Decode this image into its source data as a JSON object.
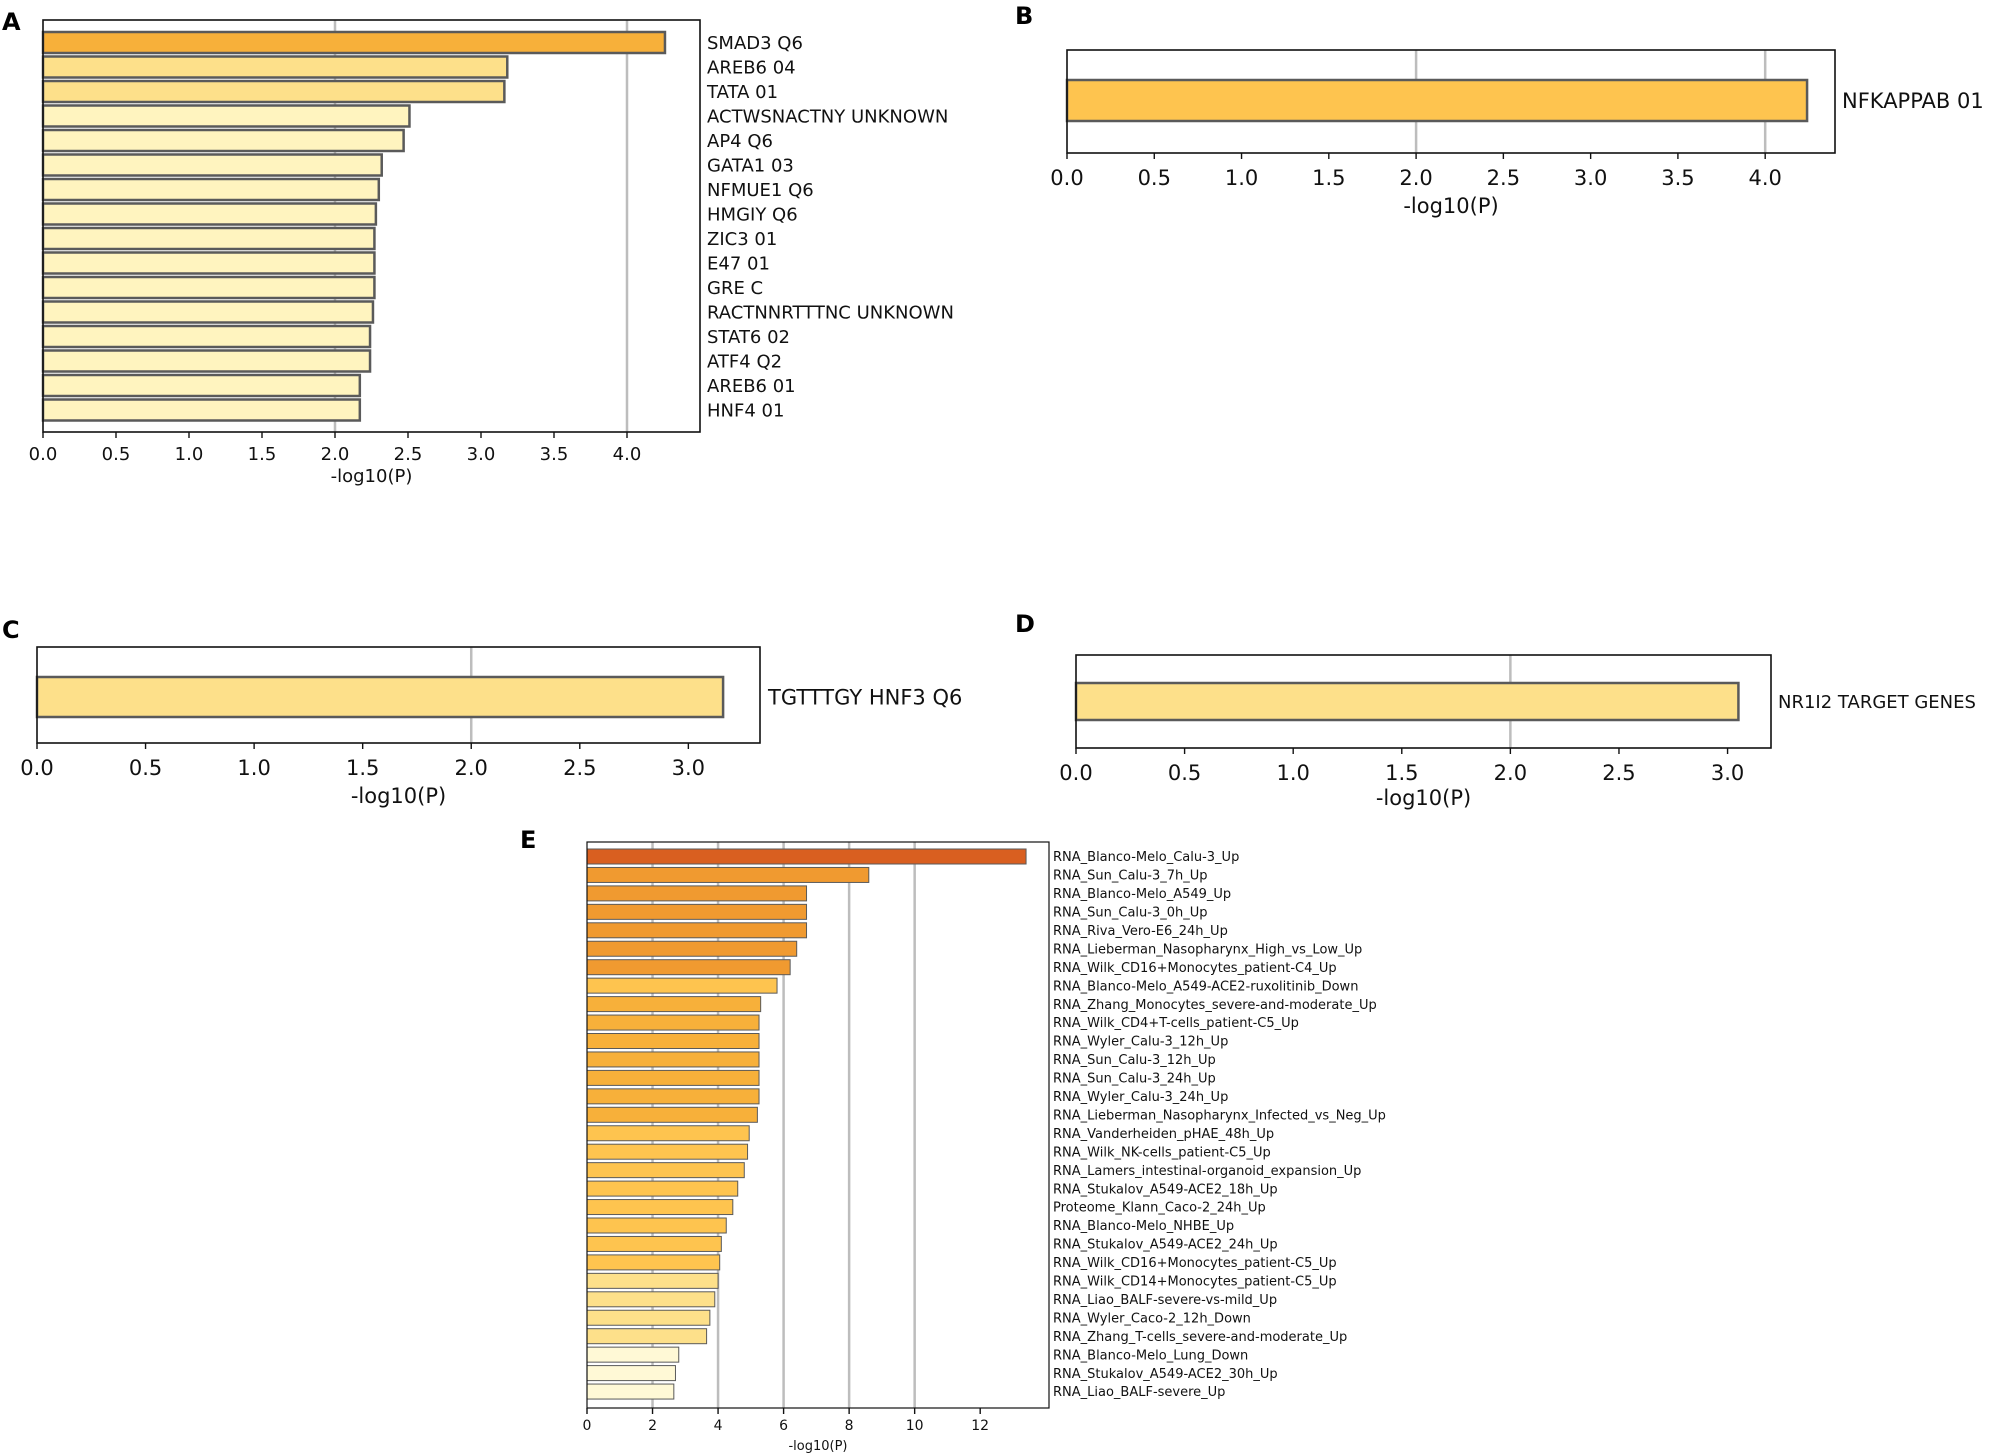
{
  "figure": {
    "panel_letters": [
      "A",
      "B",
      "C",
      "D",
      "E"
    ]
  },
  "colors": {
    "dark_orange": "#d95f20",
    "orange": "#f09a30",
    "mid_orange": "#f7b03a",
    "gold": "#fec44f",
    "light_gold": "#fde08a",
    "pale": "#fff4bf",
    "palest": "#fff9d6",
    "bar_edge": "#5a5a5a",
    "grid": "#bdbdbd"
  },
  "chart_data": [
    {
      "panel": "A",
      "type": "bar",
      "orientation": "horizontal",
      "title": "",
      "xlabel": "-log10(P)",
      "ylabel": "",
      "xlim": [
        0,
        4.5
      ],
      "xticks": [
        "0.0",
        "0.5",
        "1.0",
        "1.5",
        "2.0",
        "2.5",
        "3.0",
        "3.5",
        "4.0"
      ],
      "gridlines": [
        2.0,
        4.0
      ],
      "grid": true,
      "categories": [
        "SMAD3 Q6",
        "AREB6 04",
        "TATA 01",
        "ACTWSNACTNY UNKNOWN",
        "AP4 Q6",
        "GATA1 03",
        "NFMUE1 Q6",
        "HMGIY Q6",
        "ZIC3 01",
        "E47 01",
        "GRE C",
        "RACTNNRTTTNC UNKNOWN",
        "STAT6 02",
        "ATF4 Q2",
        "AREB6 01",
        "HNF4 01"
      ],
      "values": [
        4.26,
        3.18,
        3.16,
        2.51,
        2.47,
        2.32,
        2.3,
        2.28,
        2.27,
        2.27,
        2.27,
        2.26,
        2.24,
        2.24,
        2.17,
        2.17
      ],
      "colors": [
        "#f7b03a",
        "#fde08a",
        "#fde08a",
        "#fff4bf",
        "#fff4bf",
        "#fff4bf",
        "#fff4bf",
        "#fff4bf",
        "#fff4bf",
        "#fff4bf",
        "#fff4bf",
        "#fff4bf",
        "#fff4bf",
        "#fff4bf",
        "#fff4bf",
        "#fff4bf"
      ]
    },
    {
      "panel": "B",
      "type": "bar",
      "orientation": "horizontal",
      "title": "",
      "xlabel": "-log10(P)",
      "ylabel": "",
      "xlim": [
        0,
        4.4
      ],
      "xticks": [
        "0.0",
        "0.5",
        "1.0",
        "1.5",
        "2.0",
        "2.5",
        "3.0",
        "3.5",
        "4.0"
      ],
      "gridlines": [
        2.0,
        4.0
      ],
      "grid": true,
      "categories": [
        "NFKAPPAB 01"
      ],
      "values": [
        4.24
      ],
      "colors": [
        "#fec44f"
      ]
    },
    {
      "panel": "C",
      "type": "bar",
      "orientation": "horizontal",
      "title": "",
      "xlabel": "-log10(P)",
      "ylabel": "",
      "xlim": [
        0,
        3.33
      ],
      "xticks": [
        "0.0",
        "0.5",
        "1.0",
        "1.5",
        "2.0",
        "2.5",
        "3.0"
      ],
      "gridlines": [
        2.0
      ],
      "grid": true,
      "categories": [
        "TGTTTGY HNF3 Q6"
      ],
      "values": [
        3.16
      ],
      "colors": [
        "#fde08a"
      ]
    },
    {
      "panel": "D",
      "type": "bar",
      "orientation": "horizontal",
      "title": "",
      "xlabel": "-log10(P)",
      "ylabel": "",
      "xlim": [
        0,
        3.2
      ],
      "xticks": [
        "0.0",
        "0.5",
        "1.0",
        "1.5",
        "2.0",
        "2.5",
        "3.0"
      ],
      "gridlines": [
        2.0
      ],
      "grid": true,
      "categories": [
        "NR1I2 TARGET GENES"
      ],
      "values": [
        3.05
      ],
      "colors": [
        "#fde08a"
      ]
    },
    {
      "panel": "E",
      "type": "bar",
      "orientation": "horizontal",
      "title": "",
      "xlabel": "-log10(P)",
      "ylabel": "",
      "xlim": [
        0,
        14.1
      ],
      "xticks": [
        "0",
        "2",
        "4",
        "6",
        "8",
        "10",
        "12"
      ],
      "gridlines": [
        2,
        4,
        6,
        8,
        10
      ],
      "grid": true,
      "categories": [
        "RNA_Blanco-Melo_Calu-3_Up",
        "RNA_Sun_Calu-3_7h_Up",
        "RNA_Blanco-Melo_A549_Up",
        "RNA_Sun_Calu-3_0h_Up",
        "RNA_Riva_Vero-E6_24h_Up",
        "RNA_Lieberman_Nasopharynx_High_vs_Low_Up",
        "RNA_Wilk_CD16+Monocytes_patient-C4_Up",
        "RNA_Blanco-Melo_A549-ACE2-ruxolitinib_Down",
        "RNA_Zhang_Monocytes_severe-and-moderate_Up",
        "RNA_Wilk_CD4+T-cells_patient-C5_Up",
        "RNA_Wyler_Calu-3_12h_Up",
        "RNA_Sun_Calu-3_12h_Up",
        "RNA_Sun_Calu-3_24h_Up",
        "RNA_Wyler_Calu-3_24h_Up",
        "RNA_Lieberman_Nasopharynx_Infected_vs_Neg_Up",
        "RNA_Vanderheiden_pHAE_48h_Up",
        "RNA_Wilk_NK-cells_patient-C5_Up",
        "RNA_Lamers_intestinal-organoid_expansion_Up",
        "RNA_Stukalov_A549-ACE2_18h_Up",
        "Proteome_Klann_Caco-2_24h_Up",
        "RNA_Blanco-Melo_NHBE_Up",
        "RNA_Stukalov_A549-ACE2_24h_Up",
        "RNA_Wilk_CD16+Monocytes_patient-C5_Up",
        "RNA_Wilk_CD14+Monocytes_patient-C5_Up",
        "RNA_Liao_BALF-severe-vs-mild_Up",
        "RNA_Wyler_Caco-2_12h_Down",
        "RNA_Zhang_T-cells_severe-and-moderate_Up",
        "RNA_Blanco-Melo_Lung_Down",
        "RNA_Stukalov_A549-ACE2_30h_Up",
        "RNA_Liao_BALF-severe_Up"
      ],
      "values": [
        13.4,
        8.6,
        6.7,
        6.7,
        6.7,
        6.4,
        6.2,
        5.8,
        5.3,
        5.25,
        5.25,
        5.25,
        5.25,
        5.25,
        5.2,
        4.95,
        4.9,
        4.8,
        4.6,
        4.45,
        4.25,
        4.1,
        4.05,
        4.0,
        3.9,
        3.75,
        3.65,
        2.8,
        2.7,
        2.65
      ],
      "colors": [
        "#d95f20",
        "#f09a30",
        "#f09a30",
        "#f09a30",
        "#f09a30",
        "#f09a30",
        "#f09a30",
        "#fec44f",
        "#f7b03a",
        "#f7b03a",
        "#f7b03a",
        "#f7b03a",
        "#f7b03a",
        "#f7b03a",
        "#f7b03a",
        "#fec44f",
        "#fec44f",
        "#fec44f",
        "#fec44f",
        "#fec44f",
        "#fec44f",
        "#fec44f",
        "#fec44f",
        "#fde08a",
        "#fde08a",
        "#fde08a",
        "#fde08a",
        "#fff9d6",
        "#fff9d6",
        "#fff9d6"
      ]
    }
  ]
}
